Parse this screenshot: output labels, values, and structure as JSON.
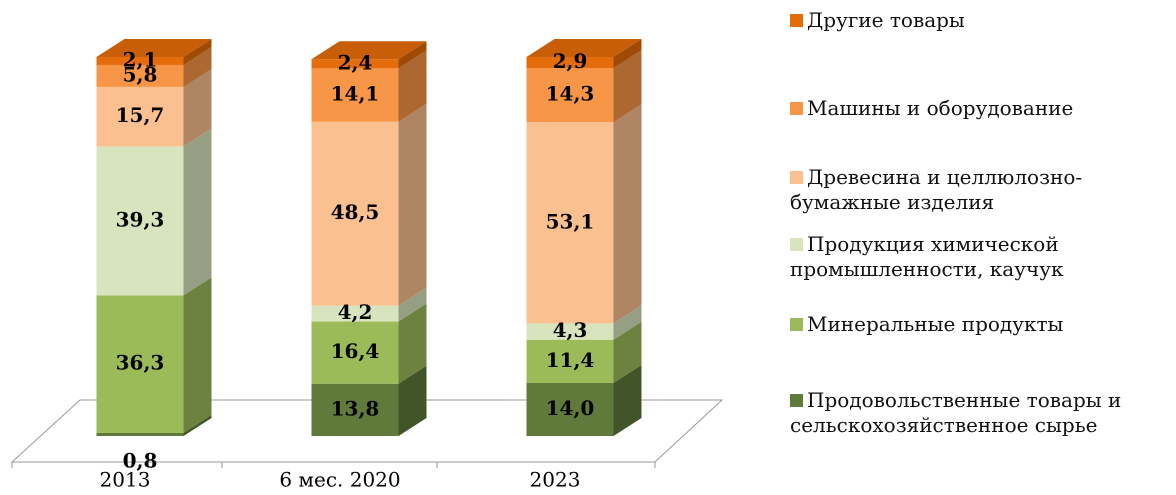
{
  "chart_data": {
    "type": "stacked-bar-3d",
    "categories": [
      "2013",
      "6 мес. 2020",
      "2023"
    ],
    "series": [
      {
        "name": "Продовольственные товары и сельскохозяйственное сырье",
        "color": "#5f7a3b",
        "values": [
          0.8,
          13.8,
          14.0
        ],
        "value_labels": [
          "0,8",
          "13,8",
          "14,0"
        ]
      },
      {
        "name": "Минеральные продукты",
        "color": "#9bbb59",
        "values": [
          36.3,
          16.4,
          11.4
        ],
        "value_labels": [
          "36,3",
          "16,4",
          "11,4"
        ]
      },
      {
        "name": "Продукция химической промышленности, каучук",
        "color": "#d7e4bd",
        "values": [
          39.3,
          4.2,
          4.3
        ],
        "value_labels": [
          "39,3",
          "4,2",
          "4,3"
        ]
      },
      {
        "name": "Древесина и целлюлозно-бумажные изделия",
        "color": "#fac090",
        "values": [
          15.7,
          48.5,
          53.1
        ],
        "value_labels": [
          "15,7",
          "48,5",
          "53,1"
        ]
      },
      {
        "name": "Машины и оборудование",
        "color": "#f79646",
        "values": [
          5.8,
          14.1,
          14.3
        ],
        "value_labels": [
          "5,8",
          "14,1",
          "14,3"
        ]
      },
      {
        "name": "Другие товары",
        "color": "#e46c0a",
        "values": [
          2.1,
          2.4,
          2.9
        ],
        "value_labels": [
          "2,1",
          "2,4",
          "2,9"
        ]
      }
    ],
    "legend": "right"
  }
}
